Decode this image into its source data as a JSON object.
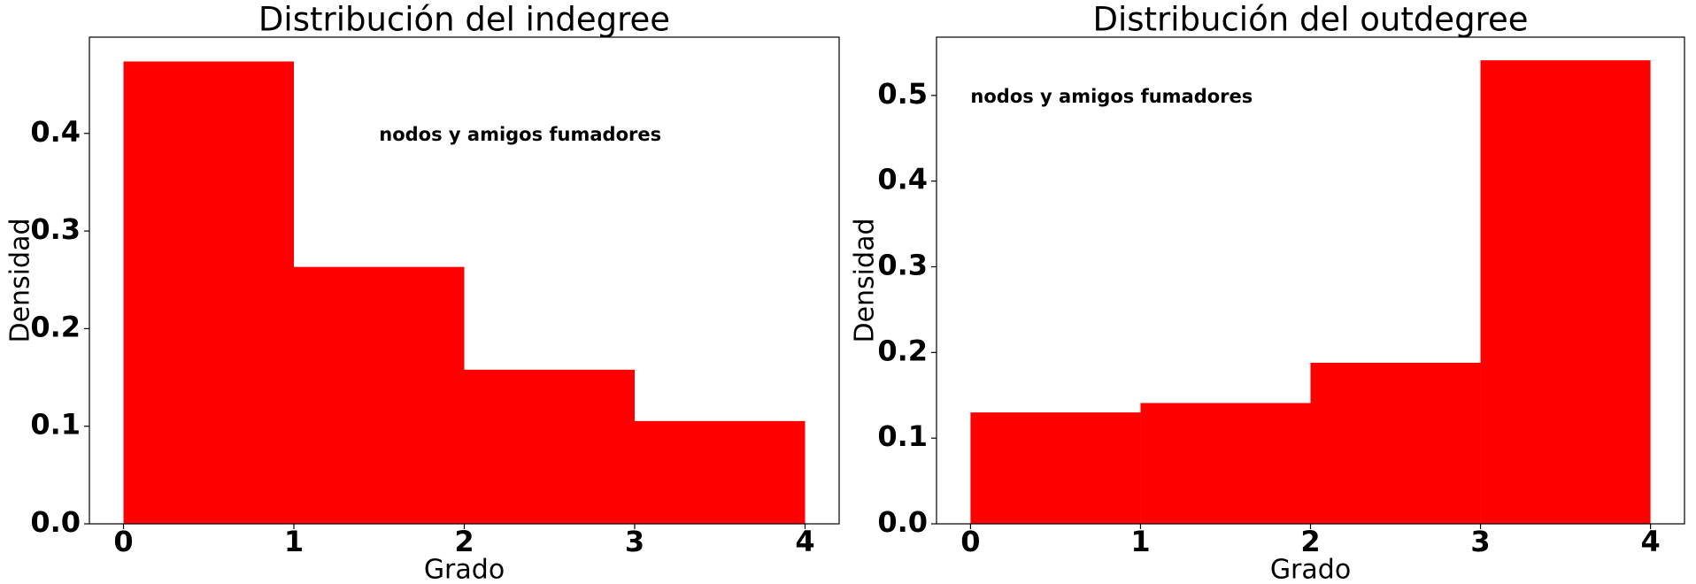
{
  "chart_data": [
    {
      "type": "histogram",
      "title": "Distribución del indegree",
      "xlabel": "Grado",
      "ylabel": "Densidad",
      "bins": [
        0,
        1,
        2,
        3,
        4
      ],
      "values": [
        0.4737,
        0.2632,
        0.1579,
        0.1053
      ],
      "color": "#ff0000",
      "xlim": [
        -0.2,
        4.2
      ],
      "ylim": [
        0,
        0.4986
      ],
      "xticks": [
        0,
        1,
        2,
        3,
        4
      ],
      "yticks": [
        {
          "value": 0,
          "label": "0.0"
        },
        0.1,
        0.2,
        0.3,
        0.4
      ],
      "annotation": {
        "text": "nodos y amigos fumadores",
        "x": 1.5,
        "y": 0.4
      }
    },
    {
      "type": "histogram",
      "title": "Distribución del outdegree",
      "xlabel": "Grado",
      "ylabel": "Densidad",
      "bins": [
        0,
        1,
        2,
        3,
        4
      ],
      "values": [
        0.13,
        0.141,
        0.188,
        0.541
      ],
      "color": "#ff0000",
      "xlim": [
        -0.2,
        4.2
      ],
      "ylim": [
        0,
        0.568
      ],
      "xticks": [
        0,
        1,
        2,
        3,
        4
      ],
      "yticks": [
        {
          "value": 0,
          "label": "0.0"
        },
        0.1,
        0.2,
        0.3,
        0.4,
        0.5
      ],
      "annotation": {
        "text": "nodos y amigos fumadores",
        "x": 0,
        "y": 0.5
      }
    }
  ]
}
